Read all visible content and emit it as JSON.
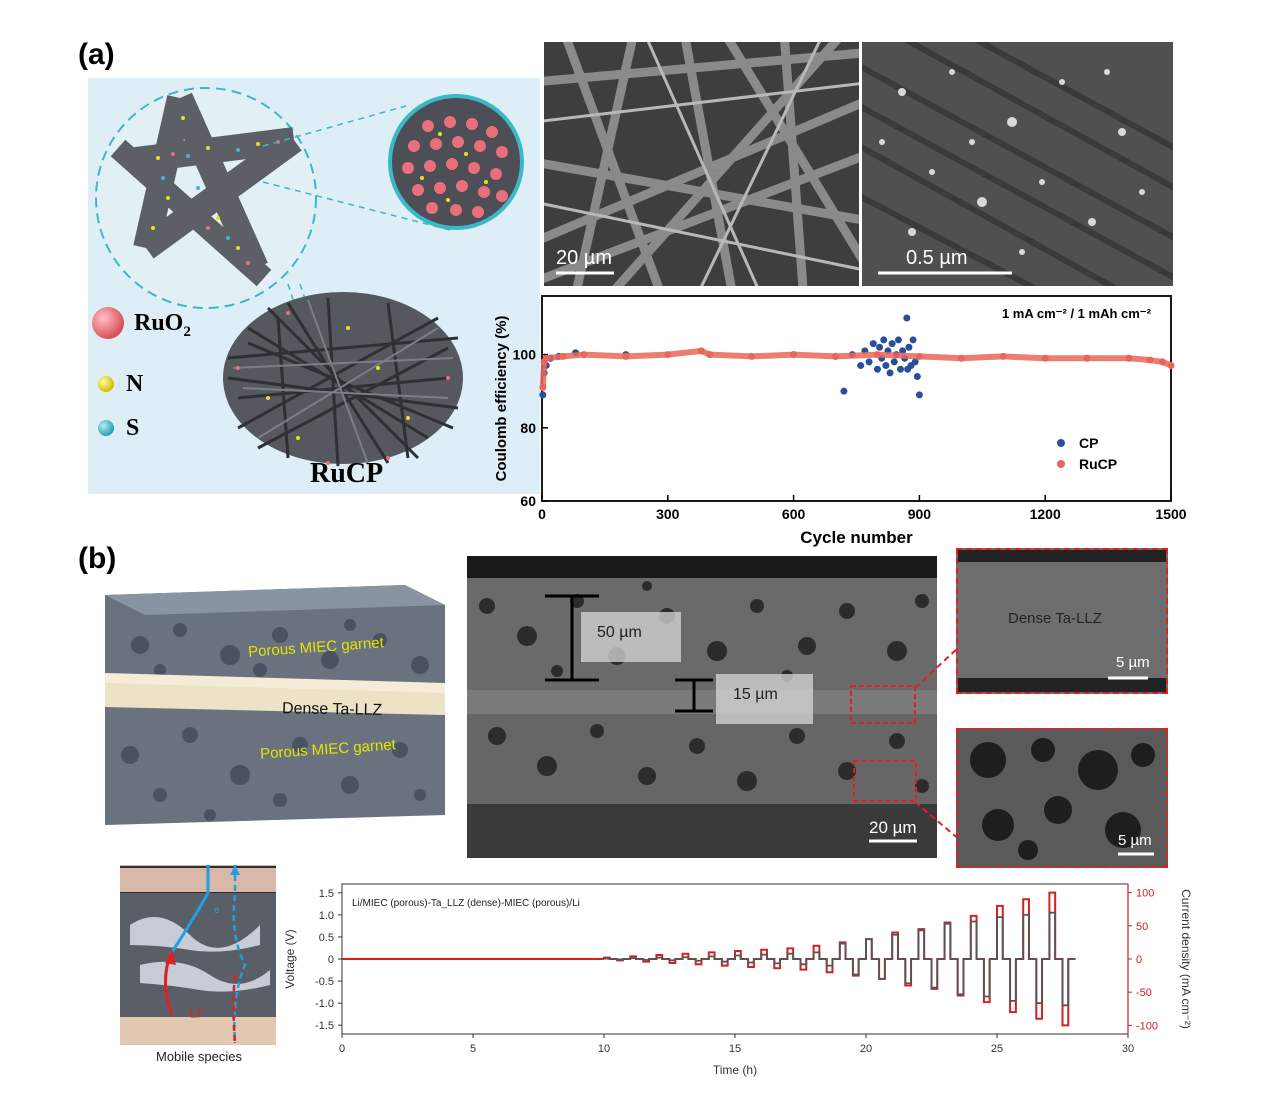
{
  "panel_a": {
    "label": "(a)",
    "legend": {
      "ruo2": "RuO",
      "ruo2_sub": "2",
      "n": "N",
      "s": "S"
    },
    "material_name": "RuCP",
    "sem_left_scale": "20 µm",
    "sem_right_scale": "0.5 µm",
    "colors": {
      "ruo2": "#e8707a",
      "n": "#e8e020",
      "s": "#40b8c8",
      "bg": "#ddeef6"
    }
  },
  "panel_b": {
    "label": "(b)",
    "schematic": {
      "porous_top": "Porous MIEC garnet",
      "dense": "Dense Ta-LLZ",
      "porous_bottom": "Porous MIEC garnet"
    },
    "sem": {
      "thick_porous": "50 µm",
      "thick_dense": "15 µm",
      "scale": "20 µm"
    },
    "zoom_dense": {
      "label": "Dense Ta-LLZ",
      "scale": "5 µm"
    },
    "zoom_porous": {
      "scale": "5 µm"
    },
    "mobile": {
      "caption": "Mobile species",
      "ion": "Li",
      "ion_sup": "+",
      "e": "e"
    }
  },
  "chart_data": [
    {
      "type": "scatter",
      "annotation": "1 mA cm⁻² / 1 mAh cm⁻²",
      "xlabel": "Cycle number",
      "ylabel": "Coulomb efficiency (%)",
      "xlim": [
        0,
        1500
      ],
      "ylim": [
        60,
        116
      ],
      "xticks": [
        0,
        300,
        600,
        900,
        1200,
        1500
      ],
      "yticks": [
        60,
        80,
        100
      ],
      "legend_position": "bottom-right",
      "series": [
        {
          "name": "CP",
          "color": "#2a4f9a",
          "points": [
            [
              2,
              89
            ],
            [
              5,
              95
            ],
            [
              10,
              97
            ],
            [
              20,
              99
            ],
            [
              40,
              99.5
            ],
            [
              80,
              100.5
            ],
            [
              200,
              100
            ],
            [
              400,
              100
            ],
            [
              600,
              100
            ],
            [
              700,
              99.5
            ],
            [
              720,
              90
            ],
            [
              740,
              100
            ],
            [
              760,
              97
            ],
            [
              770,
              101
            ],
            [
              780,
              98
            ],
            [
              790,
              103
            ],
            [
              800,
              96
            ],
            [
              805,
              102
            ],
            [
              810,
              99
            ],
            [
              815,
              104
            ],
            [
              820,
              97
            ],
            [
              825,
              101
            ],
            [
              830,
              95
            ],
            [
              835,
              103
            ],
            [
              840,
              98
            ],
            [
              845,
              100
            ],
            [
              850,
              104
            ],
            [
              855,
              96
            ],
            [
              860,
              101
            ],
            [
              865,
              99
            ],
            [
              870,
              110
            ],
            [
              872,
              96
            ],
            [
              875,
              102
            ],
            [
              880,
              97
            ],
            [
              885,
              104
            ],
            [
              890,
              98
            ],
            [
              895,
              94
            ],
            [
              900,
              89
            ]
          ]
        },
        {
          "name": "RuCP",
          "color": "#e8675a",
          "points": [
            [
              2,
              91
            ],
            [
              5,
              98
            ],
            [
              10,
              99
            ],
            [
              50,
              99.5
            ],
            [
              100,
              100
            ],
            [
              200,
              99.5
            ],
            [
              300,
              100
            ],
            [
              380,
              101
            ],
            [
              400,
              100
            ],
            [
              500,
              99.5
            ],
            [
              600,
              100
            ],
            [
              700,
              99.5
            ],
            [
              800,
              100
            ],
            [
              900,
              99.5
            ],
            [
              1000,
              99
            ],
            [
              1100,
              99.5
            ],
            [
              1200,
              99
            ],
            [
              1300,
              99
            ],
            [
              1400,
              99
            ],
            [
              1450,
              98.5
            ],
            [
              1480,
              98
            ],
            [
              1500,
              97
            ]
          ]
        }
      ]
    },
    {
      "type": "line",
      "annotation": "Li/MIEC (porous)-Ta_LLZ (dense)-MIEC (porous)/Li",
      "xlabel": "Time (h)",
      "ylabel": "Voltage (V)",
      "y2label": "Current density (mA cm⁻²)",
      "xlim": [
        0,
        30
      ],
      "ylim": [
        -1.7,
        1.7
      ],
      "y2lim": [
        -113,
        113
      ],
      "xticks": [
        0,
        5,
        10,
        15,
        20,
        25,
        30
      ],
      "yticks": [
        -1.5,
        -1.0,
        -0.5,
        0,
        0.5,
        1.0,
        1.5
      ],
      "y2ticks": [
        -100,
        -50,
        0,
        50,
        100
      ],
      "grid": false,
      "series": [
        {
          "name": "Voltage",
          "color": "#555555",
          "axis": "left",
          "steps": [
            [
              10,
              0.01
            ],
            [
              11,
              0.02
            ],
            [
              12,
              0.03
            ],
            [
              13,
              0.04
            ],
            [
              14,
              0.06
            ],
            [
              15,
              0.08
            ],
            [
              16,
              0.1
            ],
            [
              17,
              0.12
            ],
            [
              18,
              0.15
            ],
            [
              19,
              0.35
            ],
            [
              20,
              0.45
            ],
            [
              21,
              0.55
            ],
            [
              22,
              0.65
            ],
            [
              23,
              0.8
            ],
            [
              24,
              0.85
            ],
            [
              25,
              0.95
            ],
            [
              26,
              1.0
            ],
            [
              27,
              1.05
            ],
            [
              28,
              1.1
            ]
          ]
        },
        {
          "name": "Current density",
          "color": "#d42020",
          "axis": "right",
          "steps": [
            [
              10,
              2
            ],
            [
              11,
              4
            ],
            [
              12,
              6
            ],
            [
              13,
              8
            ],
            [
              14,
              10
            ],
            [
              15,
              12
            ],
            [
              16,
              14
            ],
            [
              17,
              16
            ],
            [
              18,
              20
            ],
            [
              19,
              25
            ],
            [
              20,
              30
            ],
            [
              21,
              40
            ],
            [
              22,
              45
            ],
            [
              23,
              55
            ],
            [
              24,
              65
            ],
            [
              25,
              80
            ],
            [
              26,
              90
            ],
            [
              27,
              100
            ],
            [
              28,
              100
            ]
          ]
        }
      ]
    }
  ]
}
